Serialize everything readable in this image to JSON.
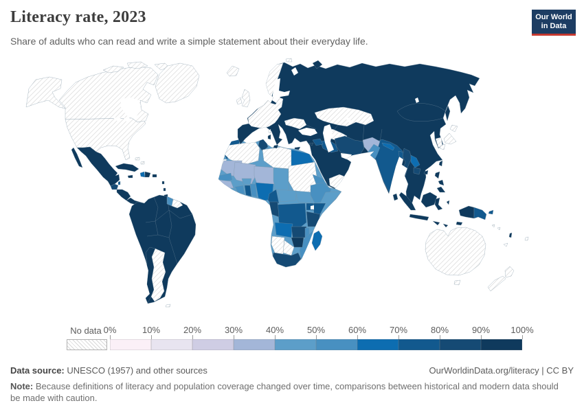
{
  "header": {
    "title": "Literacy rate, 2023",
    "subtitle": "Share of adults who can read and write a simple statement about their everyday life.",
    "logo": {
      "line1": "Our World",
      "line2": "in Data",
      "bg": "#1d3d63",
      "accent": "#c5392f"
    }
  },
  "legend": {
    "no_data_label": "No data",
    "tick_labels": [
      "0%",
      "10%",
      "20%",
      "30%",
      "40%",
      "50%",
      "60%",
      "70%",
      "80%",
      "90%",
      "100%"
    ],
    "colors": [
      "#fbf0f7",
      "#e8e4f0",
      "#cfcde4",
      "#a3b6d8",
      "#5c9ec9",
      "#4890c1",
      "#0d6db1",
      "#12598e",
      "#154a74",
      "#0f3a5d"
    ],
    "nodata_line_color": "#d8d8d8"
  },
  "map": {
    "ocean": "#ffffff",
    "border_color": "#7d93a4",
    "regions": {
      "canada": "nodata",
      "alaska": "nodata",
      "arctic-islands": "nodata",
      "greenland": "nodata",
      "usa": "nodata",
      "bahamas": "nodata",
      "mexico": 9,
      "guatemala": 8,
      "belize": 7,
      "honduras-nicaragua": 9,
      "costa-rica-panama": 9,
      "cuba": 9,
      "haiti": 6,
      "dominican-republic": 9,
      "jamaica": 9,
      "puerto-rico": 9,
      "lesser-antilles": 9,
      "south-america": 9,
      "guyana": 5,
      "suriname": "nodata",
      "argentina": "nodata",
      "chile": 9,
      "falklands": "nodata",
      "africa-base": 4,
      "morocco": 7,
      "western-sahara": "nodata",
      "algeria": "nodata",
      "tunisia": 8,
      "libya": "nodata",
      "egypt": 6,
      "mauritania": 3,
      "mali": 3,
      "niger": 3,
      "chad": 4,
      "sudan": "nodata",
      "senegal": 5,
      "guinea": 3,
      "sierra-leone-liberia": 4,
      "ivory-coast": 5,
      "burkina-faso": 4,
      "ghana": 7,
      "togo-benin": 5,
      "nigeria": 6,
      "cameroon": 7,
      "central-african-republic": 4,
      "south-sudan": 4,
      "ethiopia": 5,
      "eritrea-djibouti": 5,
      "somalia": 4,
      "kenya": 7,
      "uganda": 7,
      "drc": 7,
      "gabon-congo": 8,
      "tanzania": 8,
      "angola": 6,
      "zambia": 8,
      "malawi": 5,
      "mozambique": 5,
      "zimbabwe": 9,
      "botswana": "nodata",
      "namibia": "nodata",
      "south-africa": 8,
      "madagascar": 6,
      "eurasia-base": 9,
      "west-europe": "nodata",
      "scandinavia": "nodata",
      "iceland": "nodata",
      "uk": "nodata",
      "ireland": "nodata",
      "svalbard": "nodata",
      "corsica": "nodata",
      "ukraine": "nodata",
      "kazakhstan": "nodata",
      "turkmenistan": "nodata",
      "afghanistan": 3,
      "pakistan": 5,
      "iran": 8,
      "iraq": 7,
      "syria": 7,
      "yemen": "nodata",
      "india": 7,
      "nepal": 6,
      "bangladesh": 7,
      "myanmar": 8,
      "laos": 6,
      "cambodia": 8,
      "sri-lanka": 9,
      "south-korea": "nodata",
      "japan": "nodata",
      "sakhalin": 9,
      "novaya-zemlya": 9,
      "taiwan": 9,
      "hainan": 9,
      "philippines": 9,
      "indonesia": 9,
      "papua-indonesia": 9,
      "papua-new-guinea": 7,
      "solomon-islands": "nodata",
      "vanuatu": 9,
      "fiji": "nodata",
      "new-caledonia": "nodata",
      "australia": "nodata",
      "tasmania": "nodata",
      "new-zealand": "nodata",
      "cyprus": 9,
      "crete": 9,
      "sicily": 9,
      "sardinia": 9
    }
  },
  "footer": {
    "source_label": "Data source:",
    "source_text": " UNESCO (1957) and other sources",
    "link_text": "OurWorldinData.org/literacy | CC BY",
    "note_label": "Note:",
    "note_text": " Because definitions of literacy and population coverage changed over time, comparisons between historical and modern data should be made with caution."
  }
}
